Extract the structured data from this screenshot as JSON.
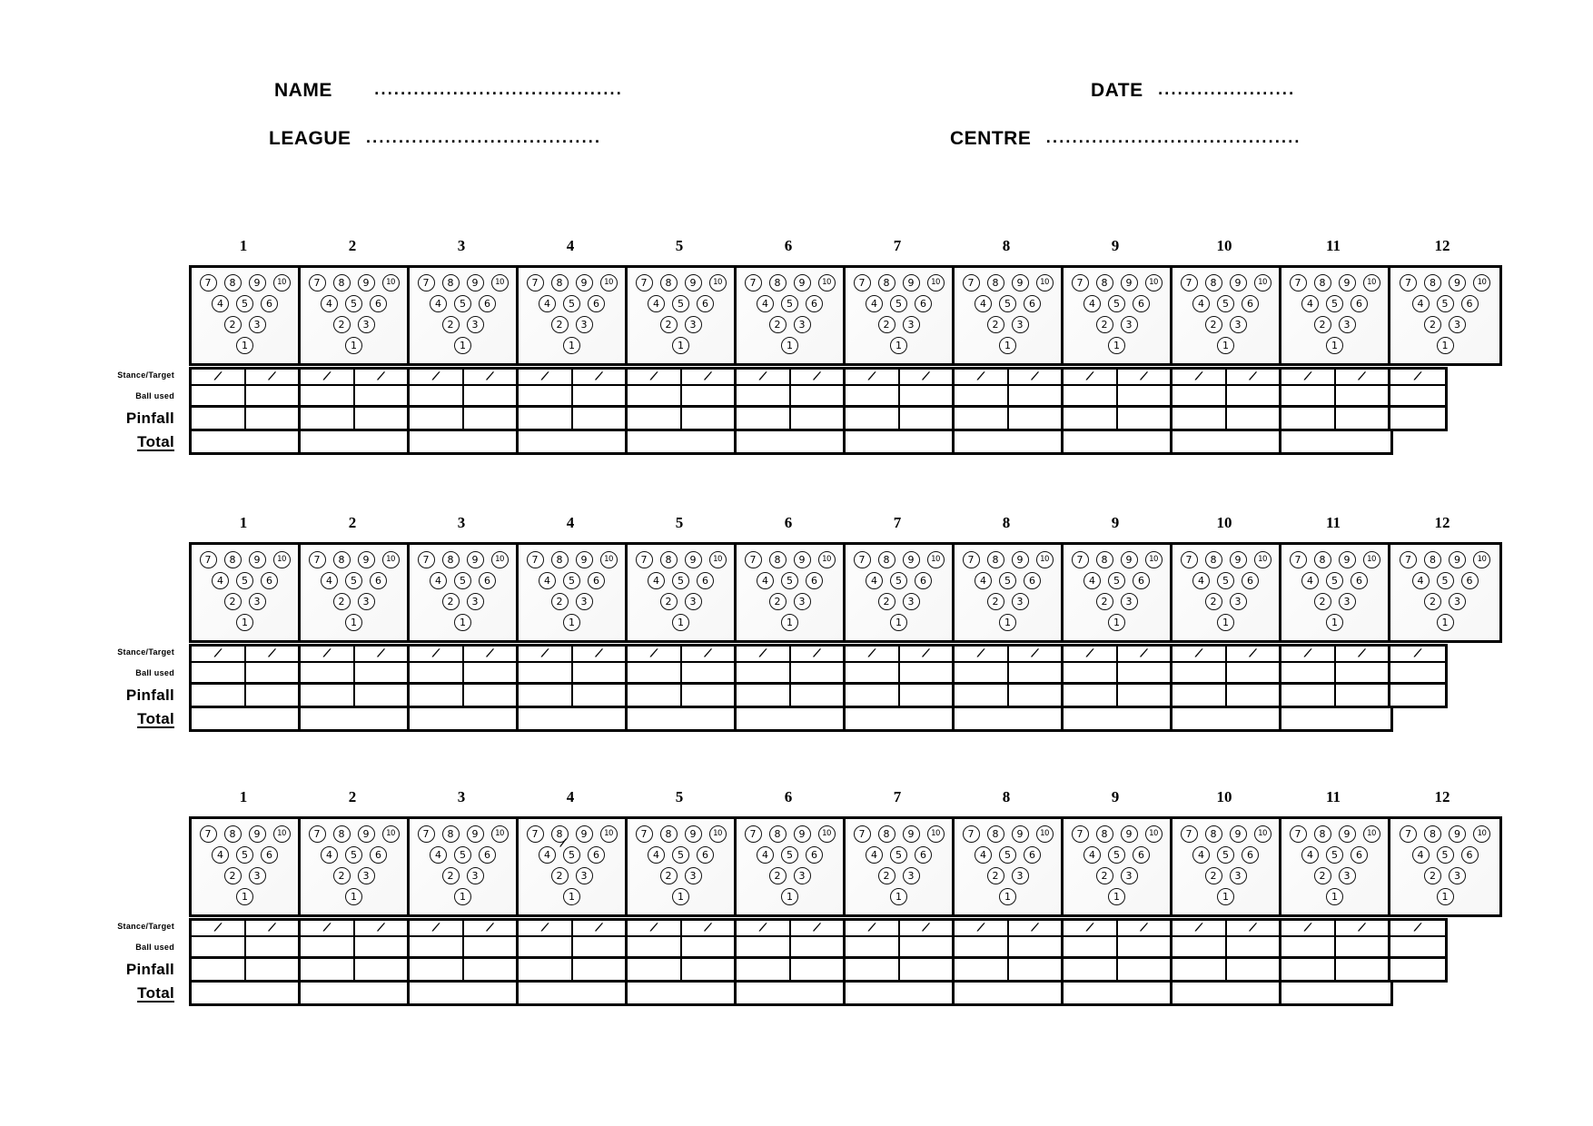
{
  "title": "Bowling score sheet",
  "header": {
    "name_label": "NAME",
    "name_dots": "......................................",
    "date_label": "DATE",
    "date_dots": ".....................",
    "league_label": "LEAGUE",
    "league_dots": "....................................",
    "centre_label": "CENTRE",
    "centre_dots": "......................................."
  },
  "frame_numbers": [
    "1",
    "2",
    "3",
    "4",
    "5",
    "6",
    "7",
    "8",
    "9",
    "10",
    "11",
    "12"
  ],
  "pin_rows": [
    [
      "7",
      "8",
      "9",
      "10"
    ],
    [
      "4",
      "5",
      "6"
    ],
    [
      "2",
      "3"
    ],
    [
      "1"
    ]
  ],
  "row_labels": {
    "stance": "Stance/Target",
    "ball": "Ball used",
    "pinfall": "Pinfall",
    "total": "Total"
  },
  "marks": {
    "slash": "/"
  },
  "sections": [
    {
      "name": "game-1"
    },
    {
      "name": "game-2"
    },
    {
      "name": "game-3"
    }
  ],
  "grid": {
    "frames_per_section": 12,
    "half_cells_per_section": 23,
    "total_cells_per_section": 11
  },
  "stray_mark": {
    "section_index": 2,
    "frame_index": 3,
    "glyph": "/"
  },
  "colors": {
    "ink": "#000000",
    "paper": "#ffffff"
  }
}
